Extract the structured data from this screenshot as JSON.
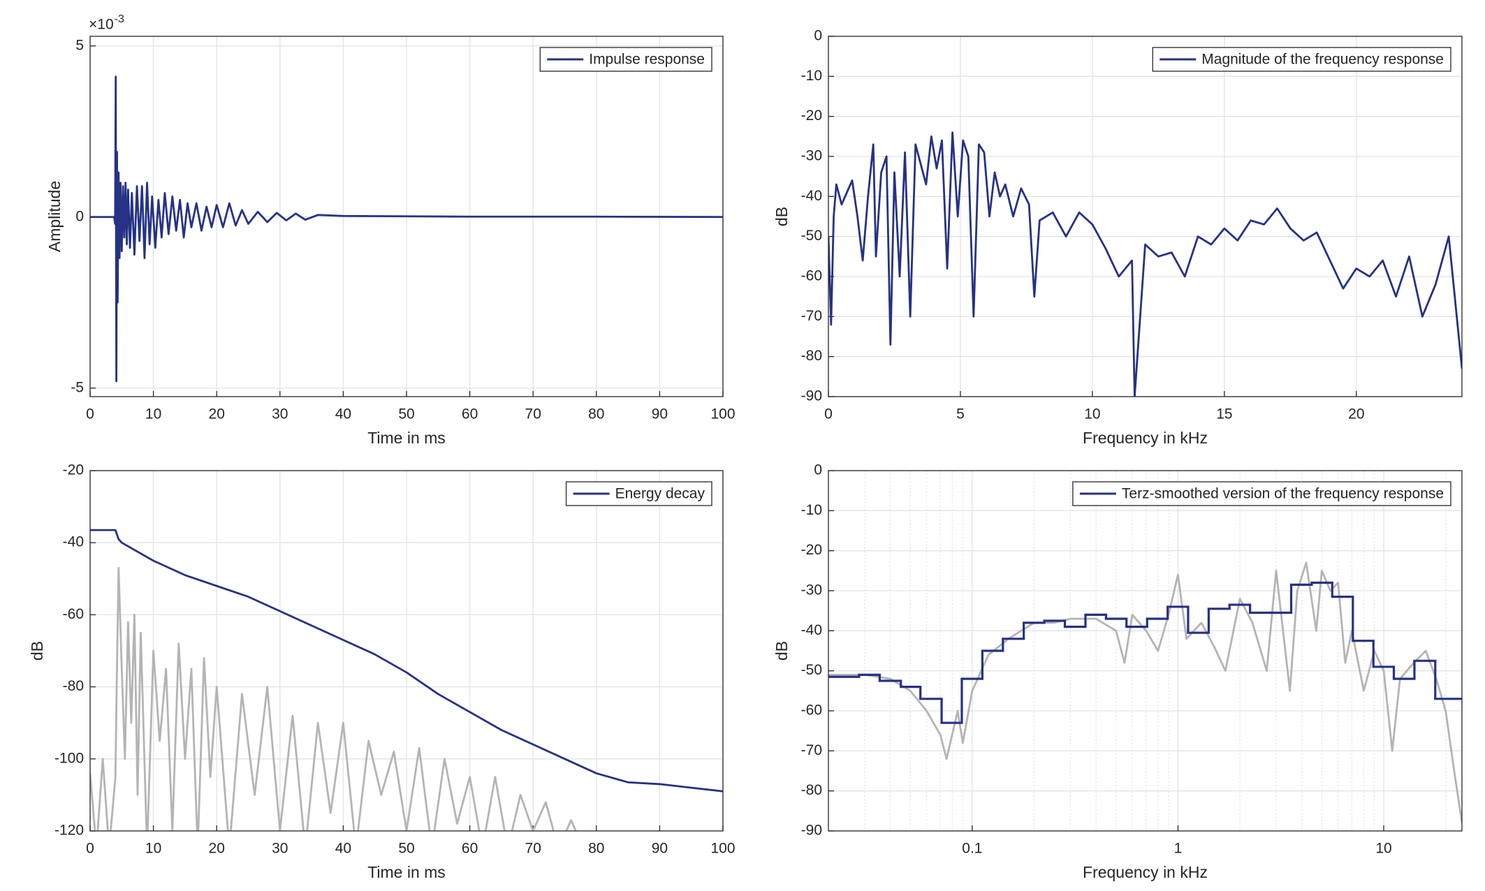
{
  "chart_data": [
    {
      "type": "line",
      "xlabel": "Time in ms",
      "ylabel": "Amplitude",
      "y_exponent_label": {
        "base": "×10",
        "power": "-3"
      },
      "xlim": [
        0,
        100
      ],
      "xticks": [
        0,
        10,
        20,
        30,
        40,
        50,
        60,
        70,
        80,
        90,
        100
      ],
      "ylim": [
        -5.25,
        5.28
      ],
      "yticks": [
        -5,
        0,
        5
      ],
      "grid": true,
      "legend_location": "northeast",
      "series": [
        {
          "name": "Impulse response",
          "color": "#253285",
          "x": [
            0,
            3.8,
            3.95,
            4.05,
            4.15,
            4.25,
            4.35,
            4.5,
            4.65,
            4.8,
            5.0,
            5.2,
            5.4,
            5.6,
            5.8,
            6.0,
            6.3,
            6.6,
            7.0,
            7.4,
            7.8,
            8.2,
            8.6,
            9.0,
            9.4,
            9.8,
            10.3,
            10.8,
            11.3,
            11.8,
            12.4,
            13,
            13.6,
            14.2,
            14.8,
            15.4,
            16,
            16.8,
            17.6,
            18.4,
            19.2,
            20,
            21,
            22,
            23,
            24,
            25,
            26.5,
            28,
            29.5,
            31,
            32.5,
            34,
            36,
            40,
            50,
            60,
            80,
            100
          ],
          "values": [
            0,
            0,
            -0.2,
            4.1,
            -4.8,
            1.9,
            -2.5,
            1.3,
            -1.2,
            1.0,
            -1.0,
            0.9,
            -0.6,
            1.0,
            -0.8,
            0.8,
            -0.9,
            0.7,
            -1.1,
            0.9,
            -0.7,
            0.9,
            -1.2,
            1.0,
            -0.8,
            0.6,
            -0.9,
            0.5,
            -0.6,
            0.7,
            -0.5,
            0.6,
            -0.4,
            0.5,
            -0.6,
            0.4,
            -0.3,
            0.4,
            -0.4,
            0.3,
            -0.3,
            0.35,
            -0.3,
            0.4,
            -0.25,
            0.2,
            -0.2,
            0.15,
            -0.15,
            0.12,
            -0.1,
            0.1,
            -0.08,
            0.06,
            0.03,
            0.02,
            0.01,
            0.01,
            0
          ]
        }
      ]
    },
    {
      "type": "line",
      "xlabel": "Frequency in kHz",
      "ylabel": "dB",
      "xlim": [
        0,
        24
      ],
      "xticks": [
        0,
        5,
        10,
        15,
        20
      ],
      "ylim": [
        -90,
        0
      ],
      "yticks": [
        -90,
        -80,
        -70,
        -60,
        -50,
        -40,
        -30,
        -20,
        -10,
        0
      ],
      "grid": true,
      "legend_location": "northeast",
      "series": [
        {
          "name": "Magnitude of the frequency response",
          "color": "#253285",
          "x": [
            0,
            0.1,
            0.2,
            0.3,
            0.5,
            0.7,
            0.9,
            1.1,
            1.3,
            1.5,
            1.7,
            1.8,
            2.0,
            2.2,
            2.35,
            2.5,
            2.7,
            2.9,
            3.1,
            3.3,
            3.5,
            3.7,
            3.9,
            4.1,
            4.3,
            4.5,
            4.7,
            4.9,
            5.1,
            5.3,
            5.5,
            5.7,
            5.9,
            6.1,
            6.3,
            6.5,
            6.7,
            7.0,
            7.3,
            7.6,
            7.8,
            8.0,
            8.5,
            9.0,
            9.5,
            10,
            10.5,
            11,
            11.5,
            11.6,
            12,
            12.5,
            13,
            13.5,
            14,
            14.5,
            15,
            15.5,
            16,
            16.5,
            17,
            17.5,
            18,
            18.5,
            19,
            19.5,
            20,
            20.5,
            21,
            21.5,
            22,
            22.5,
            23,
            23.5,
            24
          ],
          "values": [
            -50,
            -72,
            -45,
            -37,
            -42,
            -39,
            -36,
            -45,
            -56,
            -40,
            -27,
            -55,
            -34,
            -30,
            -77,
            -34,
            -60,
            -29,
            -70,
            -27,
            -32,
            -37,
            -25,
            -33,
            -26,
            -58,
            -24,
            -45,
            -26,
            -30,
            -70,
            -27,
            -29,
            -45,
            -34,
            -40,
            -37,
            -45,
            -38,
            -42,
            -65,
            -46,
            -44,
            -50,
            -44,
            -47,
            -53,
            -60,
            -56,
            -90,
            -52,
            -55,
            -54,
            -60,
            -50,
            -52,
            -48,
            -51,
            -46,
            -47,
            -43,
            -48,
            -51,
            -49,
            -56,
            -63,
            -58,
            -60,
            -56,
            -65,
            -55,
            -70,
            -62,
            -50,
            -83
          ]
        }
      ]
    },
    {
      "type": "line",
      "xlabel": "Time in ms",
      "ylabel": "dB",
      "xlim": [
        0,
        100
      ],
      "xticks": [
        0,
        10,
        20,
        30,
        40,
        50,
        60,
        70,
        80,
        90,
        100
      ],
      "ylim": [
        -120,
        -20
      ],
      "yticks": [
        -120,
        -100,
        -80,
        -60,
        -40,
        -20
      ],
      "grid": true,
      "legend_location": "northeast",
      "series": [
        {
          "color": "#b4b4b4",
          "x": [
            0,
            1,
            2,
            3,
            4,
            4.2,
            4.5,
            5,
            5.5,
            6,
            6.5,
            7,
            7.5,
            8,
            9,
            10,
            11,
            12,
            13,
            14,
            15,
            16,
            17,
            18,
            19,
            20,
            22,
            24,
            26,
            28,
            30,
            32,
            34,
            36,
            38,
            40,
            42,
            44,
            46,
            48,
            50,
            52,
            54,
            56,
            58,
            60,
            62,
            64,
            66,
            68,
            70,
            72,
            74,
            76,
            78,
            80
          ],
          "values": [
            -104,
            -125,
            -100,
            -125,
            -105,
            -80,
            -47,
            -75,
            -100,
            -62,
            -90,
            -60,
            -110,
            -65,
            -125,
            -70,
            -95,
            -75,
            -120,
            -68,
            -100,
            -75,
            -125,
            -72,
            -105,
            -80,
            -125,
            -82,
            -110,
            -80,
            -120,
            -88,
            -125,
            -90,
            -115,
            -90,
            -125,
            -95,
            -110,
            -98,
            -120,
            -97,
            -125,
            -100,
            -118,
            -105,
            -125,
            -105,
            -125,
            -110,
            -120,
            -112,
            -125,
            -117,
            -125,
            -125
          ]
        },
        {
          "name": "Energy decay",
          "color": "#253285",
          "x": [
            0,
            4,
            4.5,
            5,
            10,
            15,
            20,
            25,
            30,
            35,
            40,
            45,
            50,
            55,
            60,
            65,
            70,
            75,
            80,
            85,
            90,
            95,
            100
          ],
          "values": [
            -36.5,
            -36.5,
            -39,
            -40,
            -45,
            -49,
            -52,
            -55,
            -59,
            -63,
            -67,
            -71,
            -76,
            -82,
            -87,
            -92,
            -96,
            -100,
            -104,
            -106.5,
            -107,
            -108,
            -109
          ]
        }
      ]
    },
    {
      "type": "line",
      "xlabel": "Frequency in kHz",
      "ylabel": "dB",
      "xscale": "log",
      "minor_grid": true,
      "xlim": [
        0.02,
        24
      ],
      "xticks": [
        0.1,
        1,
        10
      ],
      "ylim": [
        -90,
        0
      ],
      "yticks": [
        -90,
        -80,
        -70,
        -60,
        -50,
        -40,
        -30,
        -20,
        -10,
        0
      ],
      "grid": true,
      "legend_location": "northeast",
      "series": [
        {
          "color": "#b4b4b4",
          "x": [
            0.02,
            0.03,
            0.04,
            0.05,
            0.06,
            0.07,
            0.075,
            0.085,
            0.09,
            0.1,
            0.12,
            0.15,
            0.2,
            0.25,
            0.3,
            0.4,
            0.5,
            0.55,
            0.6,
            0.7,
            0.8,
            0.9,
            1,
            1.1,
            1.3,
            1.5,
            1.7,
            2,
            2.3,
            2.7,
            3,
            3.5,
            3.8,
            4.2,
            4.7,
            5,
            5.5,
            6,
            6.5,
            7,
            8,
            9,
            10,
            11,
            12,
            14,
            16,
            18,
            20,
            22,
            24
          ],
          "values": [
            -51,
            -51,
            -52,
            -55,
            -60,
            -66,
            -72,
            -60,
            -68,
            -55,
            -46,
            -42,
            -38,
            -38,
            -37,
            -37,
            -40,
            -48,
            -36,
            -40,
            -45,
            -36,
            -26,
            -42,
            -38,
            -44,
            -50,
            -32,
            -38,
            -50,
            -25,
            -55,
            -30,
            -23,
            -40,
            -25,
            -30,
            -28,
            -48,
            -40,
            -55,
            -45,
            -50,
            -70,
            -52,
            -48,
            -45,
            -52,
            -60,
            -75,
            -88
          ]
        },
        {
          "name": "Terz-smoothed version of the frequency response",
          "color": "#253285",
          "drawstyle": "steps-post",
          "x": [
            0.02,
            0.0282,
            0.0355,
            0.045,
            0.056,
            0.071,
            0.089,
            0.112,
            0.141,
            0.178,
            0.224,
            0.282,
            0.355,
            0.447,
            0.562,
            0.708,
            0.891,
            1.12,
            1.41,
            1.78,
            2.24,
            2.82,
            3.55,
            4.47,
            5.62,
            7.08,
            8.91,
            11.2,
            14.1,
            17.8
          ],
          "values": [
            -51.5,
            -51,
            -52.5,
            -54,
            -57,
            -63,
            -52,
            -45,
            -42,
            -38,
            -37.5,
            -39,
            -36,
            -37,
            -39,
            -37,
            -34,
            -40.5,
            -34.5,
            -33.5,
            -35.5,
            -35.5,
            -28.5,
            -28,
            -31.5,
            -42.5,
            -49,
            -52,
            -47.5,
            -57
          ]
        }
      ]
    }
  ]
}
